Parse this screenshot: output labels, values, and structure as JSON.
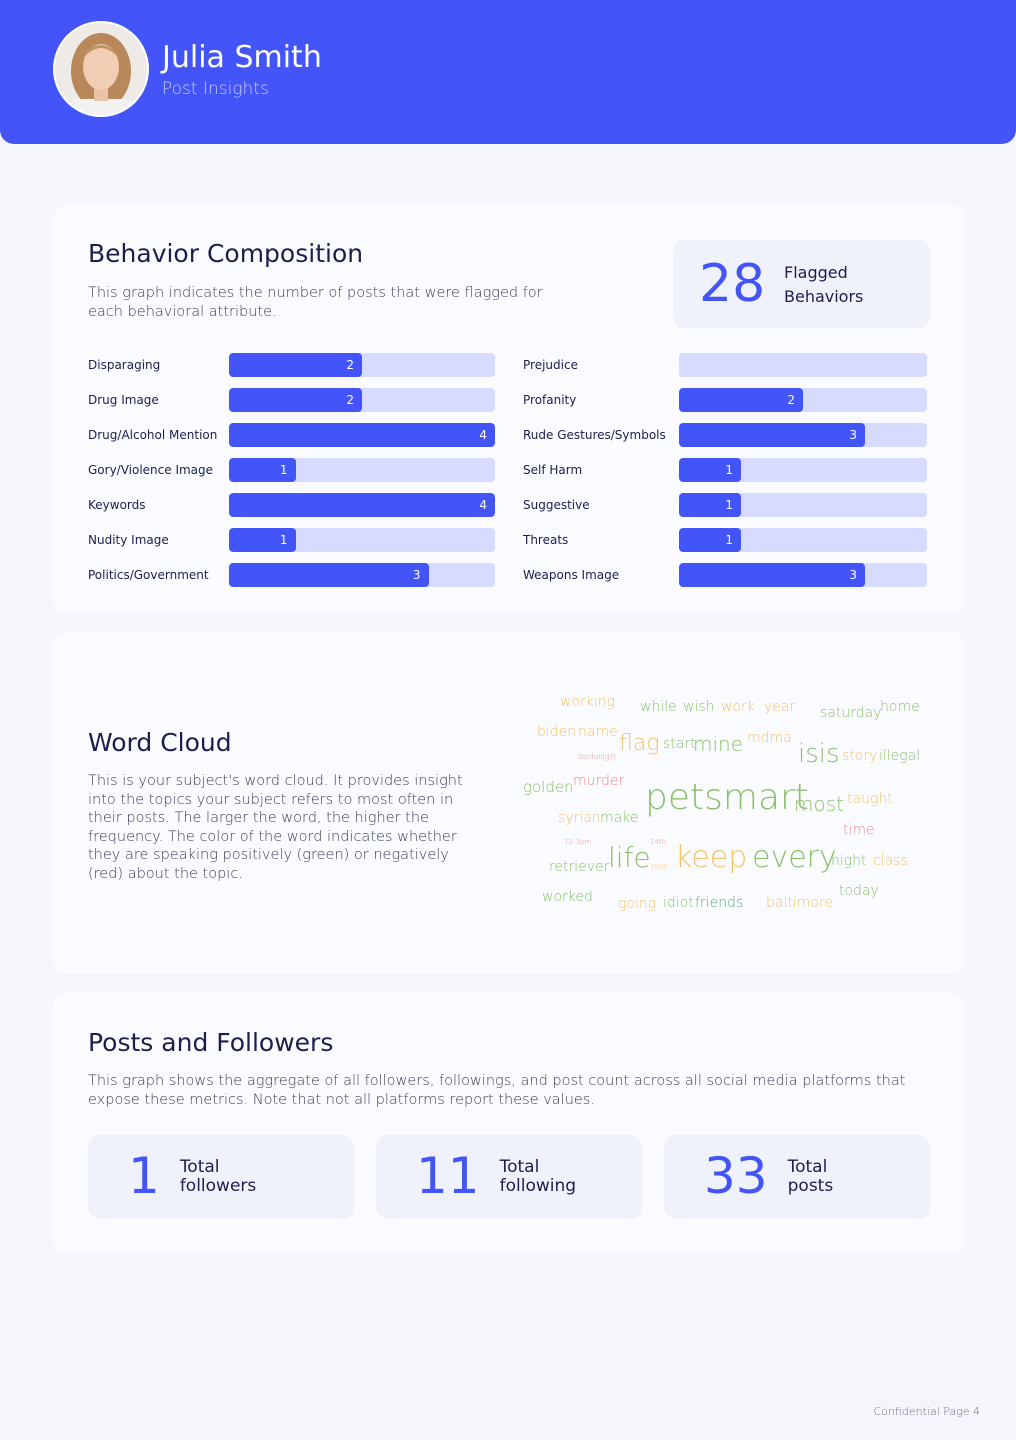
{
  "header": {
    "name": "Julia Smith",
    "subtitle": "Post Insights"
  },
  "behavior": {
    "title": "Behavior Composition",
    "description": "This graph indicates the number of posts that were flagged for each behavioral attribute.",
    "flagged_count": 28,
    "flagged_label": "Flagged Behaviors"
  },
  "chart_data": {
    "type": "bar",
    "orientation": "horizontal",
    "color": "#4355f9",
    "track_color": "#d7dbff",
    "categories": [
      "Disparaging",
      "Drug Image",
      "Drug/Alcohol Mention",
      "Gory/Violence Image",
      "Keywords",
      "Nudity Image",
      "Politics/Government",
      "Prejudice",
      "Profanity",
      "Rude Gestures/Symbols",
      "Self Harm",
      "Suggestive",
      "Threats",
      "Weapons Image"
    ],
    "values": [
      2,
      2,
      4,
      1,
      4,
      1,
      3,
      0,
      2,
      3,
      1,
      1,
      1,
      3
    ],
    "xlim": [
      0,
      4
    ]
  },
  "wordcloud": {
    "title": "Word Cloud",
    "description": "This is your subject's word cloud. It provides insight into the topics your subject refers to most often in their posts. The larger the word, the higher the frequency. The color of the word indicates whether they are speaking positively (green) or negatively (red) about the topic.",
    "words": [
      "working",
      "while",
      "wish",
      "work",
      "year",
      "saturday",
      "home",
      "biden",
      "name",
      "flag",
      "start",
      "mine",
      "mdma",
      "isis",
      "story",
      "illegal",
      "0qnfqn|g7|",
      "golden",
      "murder",
      "petsmart",
      "most",
      "taught",
      "syrian",
      "make",
      "time",
      "12-3pm",
      "14th",
      "retriever",
      "life",
      "1800",
      "keep",
      "every",
      "night",
      "class",
      "today",
      "worked",
      "going",
      "idiot",
      "friends",
      "baltimore"
    ]
  },
  "posts": {
    "title": "Posts and Followers",
    "description": "This graph shows the aggregate of all followers, followings, and post count across all social media platforms that expose these metrics. Note that not all platforms report these values.",
    "stats": [
      {
        "value": 1,
        "label": "Total followers"
      },
      {
        "value": 11,
        "label": "Total following"
      },
      {
        "value": 33,
        "label": "Total posts"
      }
    ]
  },
  "footer": "Confidential Page 4"
}
